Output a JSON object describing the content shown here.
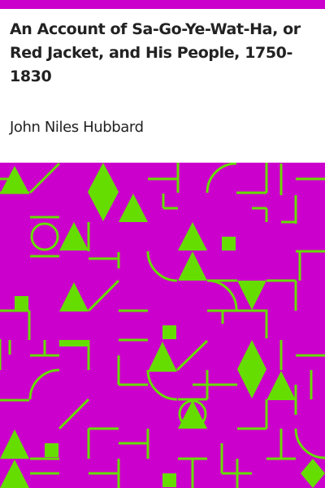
{
  "book": {
    "title": "An Account of Sa-Go-Ye-Wat-Ha, or Red Jacket, and His People, 1750-1830",
    "author": "John Niles Hubbard"
  },
  "colors": {
    "background": "#ffffff",
    "accent": "#cc00cc",
    "pattern_shape": "#66dd00",
    "text": "#222222"
  }
}
